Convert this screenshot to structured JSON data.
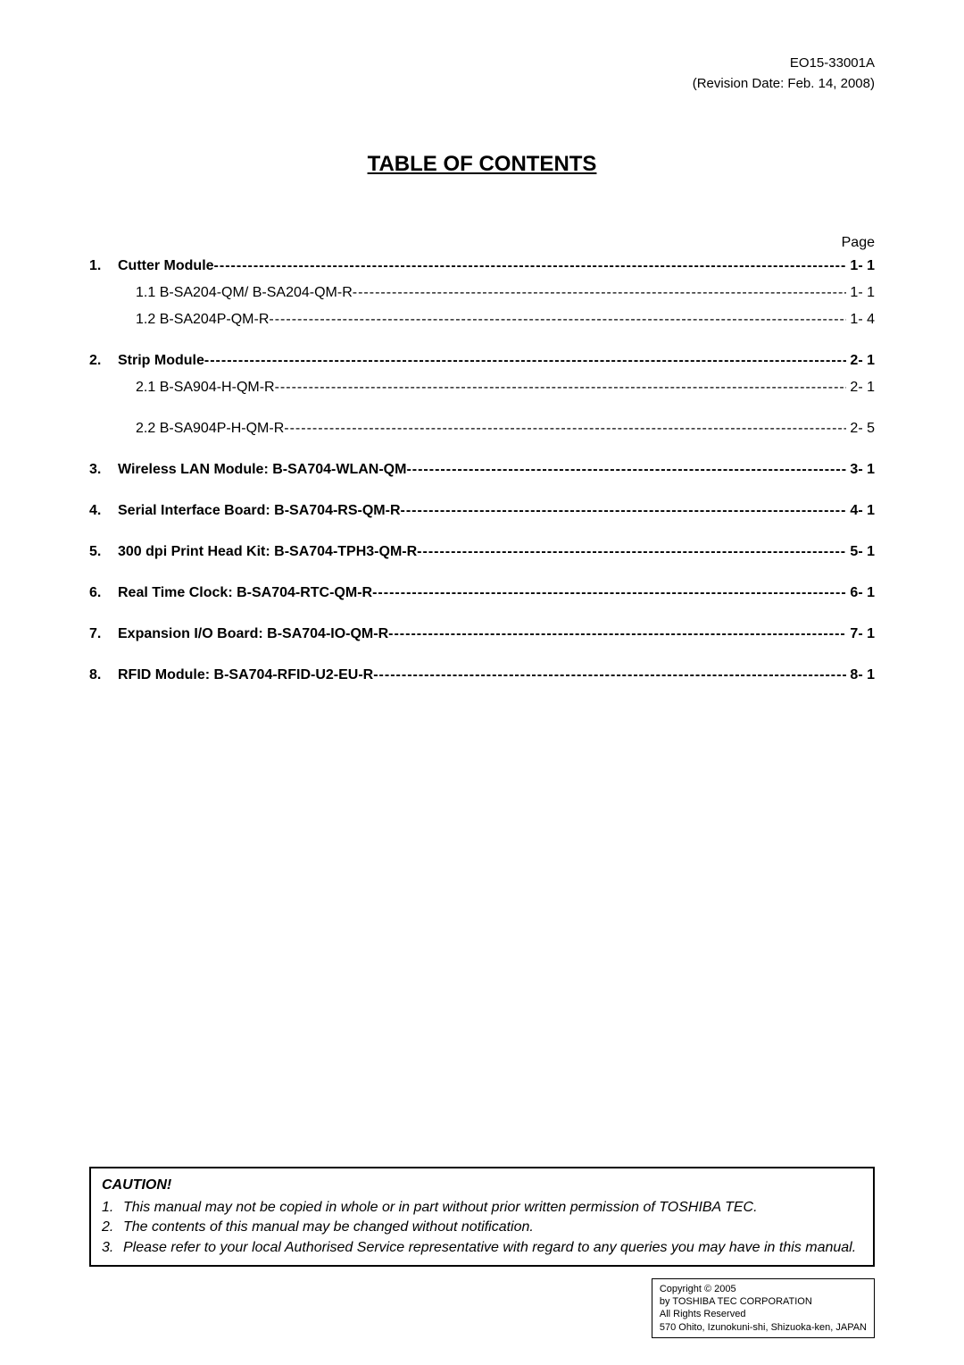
{
  "header": {
    "doc_id": "EO15-33001A",
    "revision": "(Revision Date: Feb. 14, 2008)"
  },
  "title": "TABLE OF CONTENTS",
  "page_label": "Page",
  "toc": [
    {
      "num": "1.",
      "label": "Cutter Module",
      "page": "1- 1",
      "bold": true,
      "sub": false,
      "spacer": false
    },
    {
      "num": "",
      "label": "1.1 B-SA204-QM/ B-SA204-QM-R ",
      "page": " 1- 1",
      "bold": false,
      "sub": true,
      "spacer": false
    },
    {
      "num": "",
      "label": "1.2 B-SA204P-QM-R",
      "page": " 1- 4",
      "bold": false,
      "sub": true,
      "spacer": true
    },
    {
      "num": "2.",
      "label": "Strip Module",
      "page": "2- 1",
      "bold": true,
      "sub": false,
      "spacer": false
    },
    {
      "num": "",
      "label": "2.1 B-SA904-H-QM-R",
      "page": " 2- 1",
      "bold": false,
      "sub": true,
      "spacer": true
    },
    {
      "num": "",
      "label": "2.2 B-SA904P-H-QM-R",
      "page": " 2- 5",
      "bold": false,
      "sub": true,
      "spacer": true
    },
    {
      "num": "3.",
      "label": "Wireless LAN Module: B-SA704-WLAN-QM ",
      "page": "3- 1",
      "bold": true,
      "sub": false,
      "spacer": true
    },
    {
      "num": "4.",
      "label": "Serial Interface Board: B-SA704-RS-QM-R ",
      "page": "4- 1",
      "bold": true,
      "sub": false,
      "spacer": true
    },
    {
      "num": "5.",
      "label": "300 dpi Print Head Kit: B-SA704-TPH3-QM-R",
      "page": "5- 1",
      "bold": true,
      "sub": false,
      "spacer": true
    },
    {
      "num": "6.",
      "label": "Real Time Clock: B-SA704-RTC-QM-R ",
      "page": "6- 1",
      "bold": true,
      "sub": false,
      "spacer": true
    },
    {
      "num": "7.",
      "label": "Expansion I/O Board: B-SA704-IO-QM-R",
      "page": "7- 1",
      "bold": true,
      "sub": false,
      "spacer": true
    },
    {
      "num": "8.",
      "label": "RFID Module: B-SA704-RFID-U2-EU-R",
      "page": "8- 1",
      "bold": true,
      "sub": false,
      "spacer": false
    }
  ],
  "caution": {
    "title": "CAUTION!",
    "items": [
      {
        "num": "1.",
        "text": "This manual may not be copied in whole or in part without prior written permission of TOSHIBA TEC."
      },
      {
        "num": "2.",
        "text": "The contents of this manual may be changed without notification."
      },
      {
        "num": "3.",
        "text": "Please refer to your local Authorised Service representative with regard to any queries you may have in this manual."
      }
    ]
  },
  "copyright": {
    "line1": "Copyright © 2005",
    "line2": "by TOSHIBA TEC CORPORATION",
    "line3": "All Rights Reserved",
    "line4": "570 Ohito, Izunokuni-shi, Shizuoka-ken, JAPAN"
  }
}
